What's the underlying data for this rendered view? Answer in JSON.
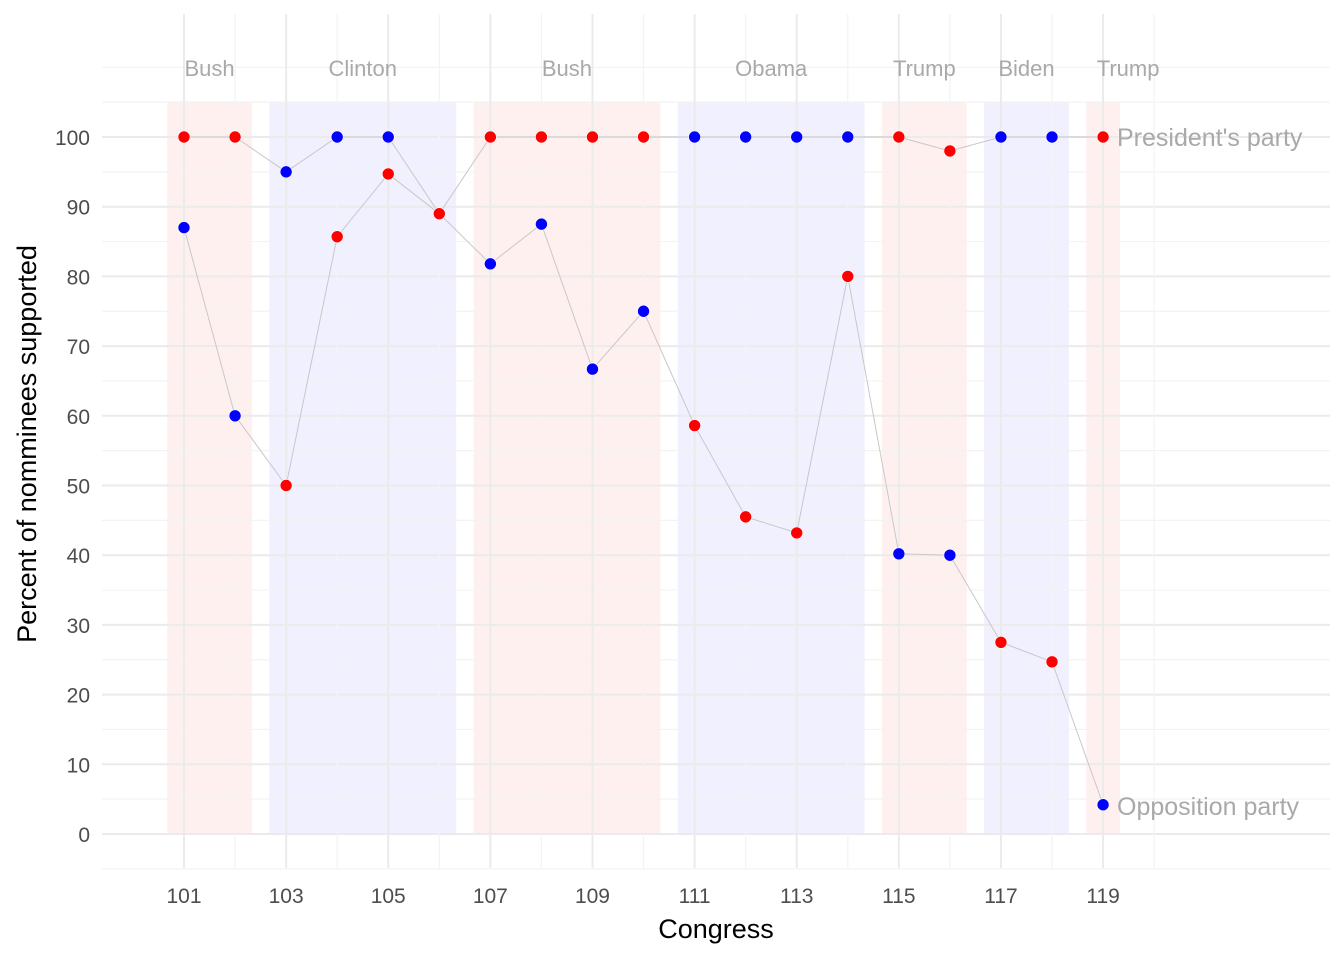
{
  "chart_data": {
    "type": "line",
    "title": "",
    "xlabel": "Congress",
    "ylabel": "Percent of nomminees supported",
    "xlim": [
      100.2,
      121.2
    ],
    "ylim": [
      -5,
      110
    ],
    "x_ticks": [
      101,
      103,
      105,
      107,
      109,
      111,
      113,
      115,
      117,
      119
    ],
    "y_ticks": [
      0,
      10,
      20,
      30,
      40,
      50,
      60,
      70,
      80,
      90,
      100
    ],
    "grid": true,
    "colors": {
      "R": "#ff0000",
      "D": "#0000ff",
      "band_R": "#fff0f0",
      "band_D": "#f0f0ff",
      "label": "#a9a9a9",
      "line": "#c8c8c8"
    },
    "administrations": [
      {
        "name": "Bush",
        "party": "R",
        "start": 101,
        "end": 102
      },
      {
        "name": "Clinton",
        "party": "D",
        "start": 103,
        "end": 106
      },
      {
        "name": "Bush",
        "party": "R",
        "start": 107,
        "end": 110
      },
      {
        "name": "Obama",
        "party": "D",
        "start": 111,
        "end": 114
      },
      {
        "name": "Trump",
        "party": "R",
        "start": 115,
        "end": 116
      },
      {
        "name": "Biden",
        "party": "D",
        "start": 117,
        "end": 118
      },
      {
        "name": "Trump",
        "party": "R",
        "start": 119,
        "end": 119
      }
    ],
    "x": [
      101,
      102,
      103,
      104,
      105,
      106,
      107,
      108,
      109,
      110,
      111,
      112,
      113,
      114,
      115,
      116,
      117,
      118,
      119
    ],
    "series": [
      {
        "name": "President's party",
        "party": [
          "R",
          "R",
          "D",
          "D",
          "D",
          "D",
          "R",
          "R",
          "R",
          "R",
          "D",
          "D",
          "D",
          "D",
          "R",
          "R",
          "D",
          "D",
          "R"
        ],
        "values": [
          100,
          100,
          95,
          100,
          100,
          89,
          100,
          100,
          100,
          100,
          100,
          100,
          100,
          100,
          100,
          98,
          100,
          100,
          100
        ]
      },
      {
        "name": "Opposition party",
        "party": [
          "D",
          "D",
          "R",
          "R",
          "R",
          "R",
          "D",
          "D",
          "D",
          "D",
          "R",
          "R",
          "R",
          "R",
          "D",
          "D",
          "R",
          "R",
          "D"
        ],
        "values": [
          87,
          60,
          50,
          85.7,
          94.7,
          89,
          81.8,
          87.5,
          66.7,
          75,
          58.6,
          45.5,
          43.2,
          80,
          40.2,
          40,
          27.5,
          24.7,
          4.2
        ]
      }
    ]
  }
}
